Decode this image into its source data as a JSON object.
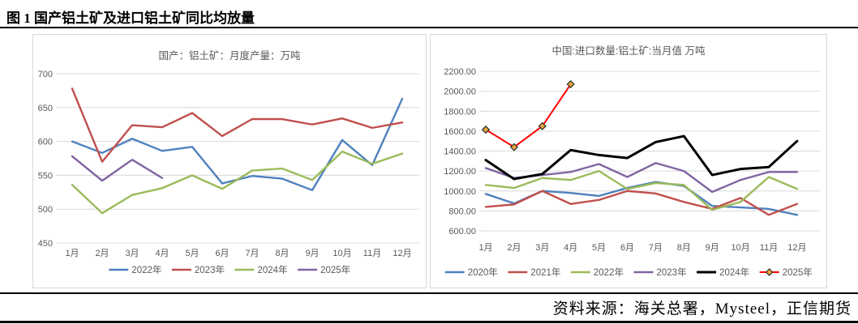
{
  "figure": {
    "title": "图 1 国产铝土矿及进口铝土矿同比均放量",
    "source": "资料来源：海关总署，Mysteel，正信期货"
  },
  "colors": {
    "blue": "#4F81BD",
    "brick_red": "#C0504D",
    "green": "#9BBB59",
    "purple": "#8064A2",
    "black": "#000000",
    "bright_red": "#FF0000",
    "grid": "#D9D9D9",
    "axis_text": "#595959"
  },
  "chart_data": [
    {
      "type": "line",
      "title": "国产：铝土矿：月度产量：万吨",
      "categories": [
        "1月",
        "2月",
        "3月",
        "4月",
        "5月",
        "6月",
        "7月",
        "8月",
        "9月",
        "10月",
        "11月",
        "12月"
      ],
      "ylim": [
        450,
        700
      ],
      "yticks": [
        "450",
        "500",
        "550",
        "600",
        "650",
        "700"
      ],
      "grid": true,
      "legend_position": "bottom",
      "series": [
        {
          "name": "2022年",
          "color": "#4F81BD",
          "values": [
            600,
            583,
            604,
            586,
            592,
            538,
            549,
            545,
            528,
            602,
            565,
            663
          ]
        },
        {
          "name": "2023年",
          "color": "#C0504D",
          "values": [
            678,
            570,
            624,
            621,
            642,
            608,
            633,
            633,
            625,
            634,
            620,
            628
          ]
        },
        {
          "name": "2024年",
          "color": "#9BBB59",
          "values": [
            536,
            494,
            521,
            531,
            550,
            530,
            557,
            560,
            543,
            585,
            567,
            582
          ]
        },
        {
          "name": "2025年",
          "color": "#8064A2",
          "values": [
            578,
            542,
            573,
            546
          ]
        }
      ]
    },
    {
      "type": "line",
      "title": "中国:进口数量:铝土矿:当月值 万吨",
      "categories": [
        "1月",
        "2月",
        "3月",
        "4月",
        "5月",
        "6月",
        "7月",
        "8月",
        "9月",
        "10月",
        "11月",
        "12月"
      ],
      "ylim": [
        600,
        2200
      ],
      "yticks": [
        "600.00",
        "800.00",
        "1000.00",
        "1200.00",
        "1400.00",
        "1600.00",
        "1800.00",
        "2000.00",
        "2200.00"
      ],
      "grid": true,
      "legend_position": "bottom",
      "series": [
        {
          "name": "2020年",
          "color": "#4F81BD",
          "values": [
            970,
            875,
            1000,
            980,
            950,
            1030,
            1090,
            1050,
            850,
            835,
            820,
            760
          ]
        },
        {
          "name": "2021年",
          "color": "#C0504D",
          "values": [
            840,
            865,
            1000,
            870,
            910,
            1000,
            975,
            890,
            820,
            930,
            760,
            870
          ]
        },
        {
          "name": "2022年",
          "color": "#9BBB59",
          "values": [
            1060,
            1030,
            1130,
            1110,
            1200,
            1020,
            1080,
            1060,
            810,
            890,
            1140,
            1020
          ]
        },
        {
          "name": "2023年",
          "color": "#8064A2",
          "values": [
            1230,
            1130,
            1160,
            1190,
            1270,
            1140,
            1280,
            1200,
            990,
            1110,
            1190,
            1190
          ]
        },
        {
          "name": "2024年",
          "color": "#000000",
          "width": 3,
          "values": [
            1310,
            1120,
            1170,
            1410,
            1360,
            1330,
            1490,
            1550,
            1160,
            1220,
            1240,
            1500
          ]
        },
        {
          "name": "2025年",
          "color": "#FF0000",
          "width": 2,
          "marker": "diamond",
          "marker_fill": "#E8A33D",
          "marker_stroke": "#2B2B2B",
          "values": [
            1615,
            1440,
            1650,
            2070
          ]
        }
      ]
    }
  ]
}
